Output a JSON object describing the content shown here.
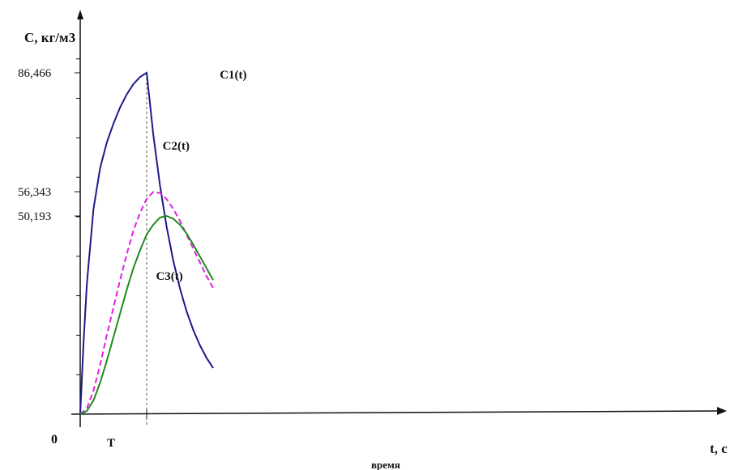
{
  "chart_data": {
    "type": "line",
    "title": "",
    "ylabel": "C, кг/м3",
    "xlabel": "t, с",
    "xcaption": "время",
    "origin_label": "0",
    "t_marker_label": "T",
    "xlim": [
      0,
      50
    ],
    "ylim": [
      0,
      92
    ],
    "t_marker": 5,
    "y_tick_labels": [
      {
        "value": 86.466,
        "label": "86,466"
      },
      {
        "value": 56.343,
        "label": "56,343"
      },
      {
        "value": 50.193,
        "label": "50,193"
      }
    ],
    "y_minor_ticks": [
      10,
      20,
      30,
      40,
      50,
      60,
      70,
      80,
      90
    ],
    "series": [
      {
        "name": "C1(t)",
        "color": "#1a1a8c",
        "dash": "solid",
        "x": [
          0,
          0.25,
          0.5,
          1,
          1.5,
          2,
          2.5,
          3,
          3.5,
          4,
          4.5,
          5,
          5.5,
          6,
          6.5,
          7,
          7.5,
          8,
          8.5,
          9,
          9.5,
          10
        ],
        "y": [
          0,
          18.1,
          33.0,
          52.0,
          62.4,
          68.8,
          73.6,
          77.7,
          81.0,
          83.6,
          85.4,
          86.466,
          70.8,
          58.0,
          47.5,
          38.9,
          31.9,
          26.1,
          21.4,
          17.5,
          14.3,
          11.7
        ]
      },
      {
        "name": "C2(t)",
        "color": "#e020e0",
        "dash": "dashed",
        "x": [
          0,
          0.5,
          1,
          1.5,
          2,
          2.5,
          3,
          3.5,
          4,
          4.5,
          5,
          5.5,
          6,
          6.5,
          7,
          7.5,
          8,
          8.5,
          9,
          9.5,
          10
        ],
        "y": [
          0,
          1.5,
          6.0,
          12.5,
          20.0,
          27.0,
          34.0,
          40.5,
          46.5,
          51.0,
          54.5,
          56.3,
          56.0,
          54.5,
          52.0,
          49.0,
          45.5,
          42.0,
          38.5,
          35.0,
          32.0
        ]
      },
      {
        "name": "C3(t)",
        "color": "#1f8a1f",
        "dash": "solid",
        "x": [
          0,
          0.5,
          1,
          1.5,
          2,
          2.5,
          3,
          3.5,
          4,
          4.5,
          5,
          5.5,
          6,
          6.5,
          7,
          7.5,
          8,
          8.5,
          9,
          9.5,
          10
        ],
        "y": [
          0,
          0.8,
          3.5,
          8.0,
          13.5,
          19.5,
          25.5,
          31.5,
          37.0,
          41.5,
          45.5,
          48.0,
          49.8,
          50.2,
          49.5,
          48.0,
          45.8,
          43.0,
          40.0,
          37.0,
          34.0
        ]
      }
    ],
    "series_label_positions": [
      {
        "name": "C1(t)",
        "x": 10.5,
        "y": 85.0
      },
      {
        "name": "C2(t)",
        "x": 6.2,
        "y": 67.0
      },
      {
        "name": "C3(t)",
        "x": 5.7,
        "y": 34.0
      }
    ],
    "grid": false,
    "legend": "inline"
  }
}
